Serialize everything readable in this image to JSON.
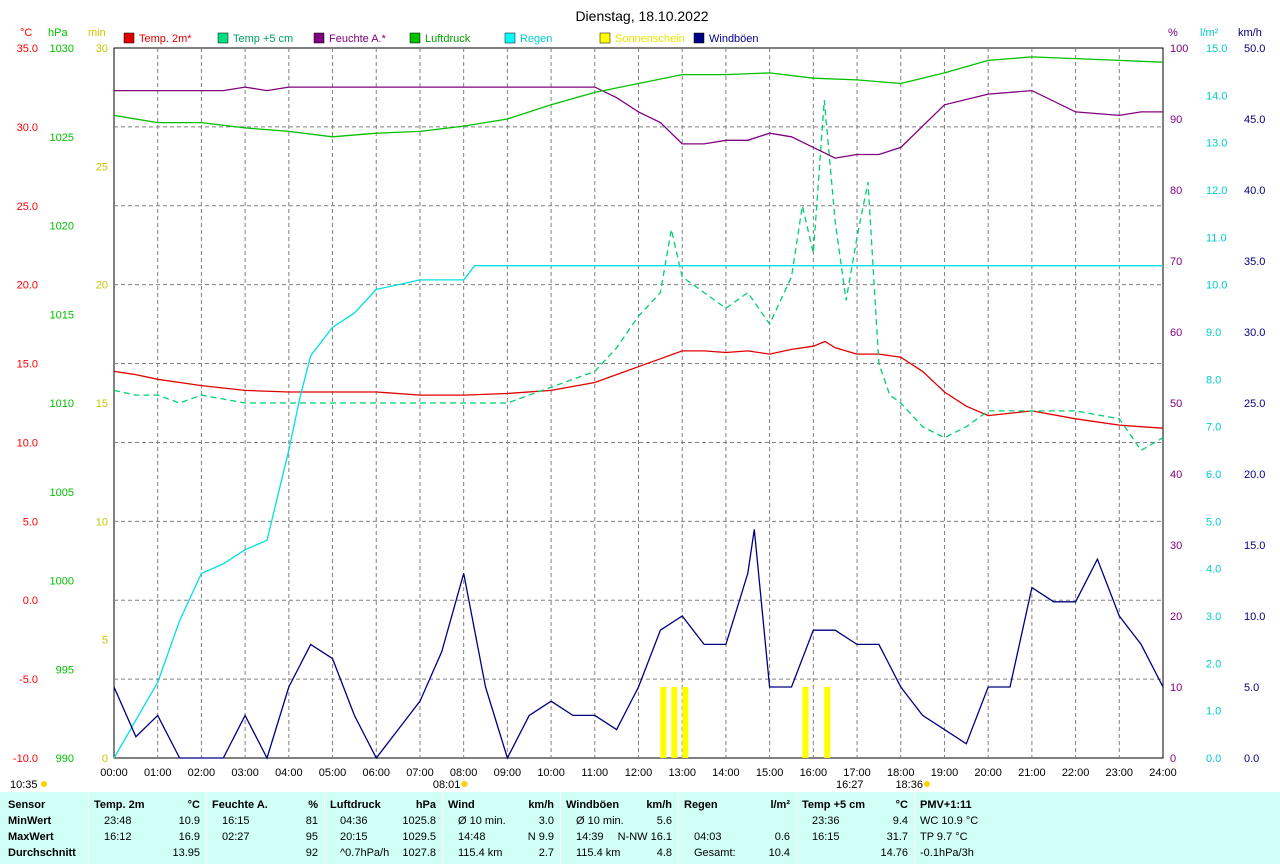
{
  "title": "Dienstag, 18.10.2022",
  "colors": {
    "temp2m": "#ff0000",
    "temp5cm": "#00e080",
    "humidity": "#800080",
    "pressure": "#00c000",
    "rain": "#00ffff",
    "sun": "#ffff00",
    "gust": "#000080"
  },
  "legend": [
    {
      "label": "Temp. 2m*",
      "color": "#e00000",
      "textcolor": "#e00000"
    },
    {
      "label": "Temp +5 cm",
      "color": "#00e080",
      "textcolor": "#00a060"
    },
    {
      "label": "Feuchte A.*",
      "color": "#800080",
      "textcolor": "#800080"
    },
    {
      "label": "Luftdruck",
      "color": "#00c000",
      "textcolor": "#00a000"
    },
    {
      "label": "Regen",
      "color": "#00ffff",
      "textcolor": "#00cccc"
    },
    {
      "label": "Sonnenschein",
      "color": "#ffff00",
      "textcolor": "#e6e600"
    },
    {
      "label": "Windböen",
      "color": "#000080",
      "textcolor": "#000080"
    }
  ],
  "axes": {
    "temp": {
      "unit": "°C",
      "ticks": [
        "35.0",
        "30.0",
        "25.0",
        "20.0",
        "15.0",
        "10.0",
        "5.0",
        "0.0",
        "-5.0",
        "-10.0"
      ],
      "color": "#ff0000"
    },
    "pressure": {
      "unit": "hPa",
      "ticks": [
        "1030",
        "1025",
        "1020",
        "1015",
        "1010",
        "1005",
        "1000",
        "995",
        "990"
      ],
      "color": "#00c000"
    },
    "minutes": {
      "unit": "min",
      "ticks": [
        "30",
        "25",
        "20",
        "15",
        "10",
        "5",
        "0"
      ],
      "color": "#c8c800"
    },
    "humidity": {
      "unit": "%",
      "ticks": [
        "100",
        "90",
        "80",
        "70",
        "60",
        "50",
        "40",
        "30",
        "20",
        "10",
        "0"
      ],
      "color": "#800080"
    },
    "rain": {
      "unit": "l/m²",
      "ticks": [
        "15.0",
        "14.0",
        "13.0",
        "12.0",
        "11.0",
        "10.0",
        "9.0",
        "8.0",
        "7.0",
        "6.0",
        "5.0",
        "4.0",
        "3.0",
        "2.0",
        "1.0",
        "0.0"
      ],
      "color": "#00cccc"
    },
    "wind": {
      "unit": "km/h",
      "ticks": [
        "50.0",
        "45.0",
        "40.0",
        "35.0",
        "30.0",
        "25.0",
        "20.0",
        "15.0",
        "10.0",
        "5.0",
        "0.0"
      ],
      "color": "#000080"
    },
    "time": {
      "ticks": [
        "00:00",
        "01:00",
        "02:00",
        "03:00",
        "04:00",
        "05:00",
        "06:00",
        "07:00",
        "08:00",
        "09:00",
        "10:00",
        "11:00",
        "12:00",
        "13:00",
        "14:00",
        "15:00",
        "16:00",
        "17:00",
        "18:00",
        "19:00",
        "20:00",
        "21:00",
        "22:00",
        "23:00",
        "24:00"
      ]
    }
  },
  "markers": {
    "sunrise": "08:01",
    "maxtemp": "16:27",
    "sunset": "18:36",
    "moonrise": "10:35"
  },
  "chart_data": {
    "type": "line",
    "title": "Dienstag, 18.10.2022",
    "x_unit": "hours",
    "series": [
      {
        "name": "Temp. 2m*",
        "unit": "°C",
        "x": [
          0,
          0.5,
          1,
          2,
          3,
          4,
          5,
          6,
          7,
          8,
          9,
          10,
          11,
          12,
          13,
          13.5,
          14,
          14.5,
          15,
          15.5,
          16,
          16.27,
          16.5,
          17,
          17.5,
          18,
          18.5,
          19,
          19.5,
          20,
          21,
          22,
          23,
          23.5,
          24
        ],
        "y": [
          14.5,
          14.3,
          14,
          13.6,
          13.3,
          13.2,
          13.2,
          13.2,
          13,
          13,
          13.1,
          13.3,
          13.8,
          14.8,
          15.8,
          15.8,
          15.7,
          15.8,
          15.6,
          15.9,
          16.1,
          16.4,
          16,
          15.6,
          15.6,
          15.4,
          14.5,
          13.2,
          12.3,
          11.7,
          12,
          11.5,
          11.1,
          11,
          10.9
        ]
      },
      {
        "name": "Temp +5 cm",
        "unit": "°C",
        "x": [
          0,
          0.5,
          1,
          1.5,
          2,
          3,
          4,
          5,
          6,
          7,
          8,
          9,
          10,
          11,
          11.5,
          12,
          12.5,
          12.75,
          13,
          13.5,
          14,
          14.5,
          15,
          15.5,
          15.75,
          16,
          16.25,
          16.5,
          16.75,
          17,
          17.25,
          17.5,
          17.75,
          18,
          18.5,
          19,
          19.5,
          20,
          20.5,
          21,
          22,
          23,
          23.5,
          24
        ],
        "y": [
          13.3,
          13,
          13,
          12.5,
          13,
          12.5,
          12.5,
          12.5,
          12.5,
          12.5,
          12.5,
          12.5,
          13.5,
          14.5,
          16,
          18,
          19.5,
          23.5,
          20.5,
          19.5,
          18.5,
          19.5,
          17.5,
          20.5,
          25,
          22,
          31.7,
          24,
          19,
          23,
          26.5,
          15,
          13,
          12.5,
          11,
          10.3,
          11,
          12,
          12,
          12,
          12,
          11.5,
          9.5,
          10.3
        ]
      },
      {
        "name": "Feuchte A.*",
        "unit": "%",
        "x": [
          0,
          2.5,
          3,
          3.5,
          4,
          5,
          6,
          7,
          8,
          9,
          10,
          11,
          11.5,
          12,
          12.5,
          13,
          13.5,
          14,
          14.5,
          15,
          15.5,
          16,
          16.5,
          17,
          17.5,
          18,
          19,
          20,
          21,
          22,
          23,
          23.5,
          24
        ],
        "y": [
          94,
          94,
          94.5,
          94,
          94.5,
          94.5,
          94.5,
          94.5,
          94.5,
          94.5,
          94.5,
          94.5,
          93,
          91,
          89.5,
          86.5,
          86.5,
          87,
          87,
          88,
          87.5,
          86,
          84.5,
          85,
          85,
          86,
          92,
          93.5,
          94,
          91,
          90.5,
          91,
          91
        ]
      },
      {
        "name": "Luftdruck",
        "unit": "hPa",
        "x": [
          0,
          1,
          2,
          3,
          4,
          5,
          6,
          7,
          8,
          9,
          10,
          11,
          12,
          13,
          14,
          15,
          16,
          17,
          18,
          19,
          20,
          21,
          22,
          23,
          24
        ],
        "y": [
          1026.2,
          1025.8,
          1025.8,
          1025.5,
          1025.3,
          1025,
          1025.2,
          1025.3,
          1025.6,
          1026,
          1026.8,
          1027.5,
          1028,
          1028.5,
          1028.5,
          1028.6,
          1028.3,
          1028.2,
          1028,
          1028.6,
          1029.3,
          1029.5,
          1029.4,
          1029.3,
          1029.2
        ]
      },
      {
        "name": "Regen",
        "unit": "l/m²",
        "x": [
          0,
          0.5,
          1,
          1.5,
          2,
          2.5,
          3,
          3.5,
          4,
          4.25,
          4.5,
          5,
          5.5,
          6,
          6.5,
          7,
          7.5,
          8,
          8.25,
          9,
          10,
          11,
          12,
          13,
          14,
          15,
          16,
          17,
          18,
          19,
          20,
          21,
          22,
          23,
          24
        ],
        "y": [
          0,
          0.8,
          1.6,
          2.9,
          3.9,
          4.1,
          4.4,
          4.6,
          6.5,
          7.6,
          8.5,
          9.1,
          9.4,
          9.9,
          10.0,
          10.1,
          10.1,
          10.1,
          10.4,
          10.4,
          10.4,
          10.4,
          10.4,
          10.4,
          10.4,
          10.4,
          10.4,
          10.4,
          10.4,
          10.4,
          10.4,
          10.4,
          10.4,
          10.4,
          10.4
        ]
      },
      {
        "name": "Sonnenschein",
        "unit": "min",
        "x": [
          12.5,
          12.75,
          13,
          15.75,
          16.25
        ],
        "y": [
          3,
          3,
          3,
          3,
          3
        ]
      },
      {
        "name": "Windböen",
        "unit": "km/h",
        "x": [
          0,
          0.5,
          1,
          1.5,
          2,
          2.5,
          3,
          3.5,
          4,
          4.5,
          5,
          5.5,
          6,
          6.5,
          7,
          7.5,
          8,
          8.5,
          9,
          9.5,
          10,
          10.5,
          11,
          11.5,
          12,
          12.5,
          13,
          13.5,
          14,
          14.5,
          14.65,
          15,
          15.5,
          16,
          16.5,
          17,
          17.5,
          18,
          18.5,
          19,
          19.5,
          20,
          20.5,
          21,
          21.5,
          22,
          22.5,
          23,
          23.5,
          24
        ],
        "y": [
          5,
          1.5,
          3,
          0,
          0,
          0,
          3,
          0,
          5,
          8,
          7,
          3,
          0,
          2,
          4,
          7.5,
          13,
          5,
          0,
          3,
          4,
          3,
          3,
          2,
          5,
          9,
          10,
          8,
          8,
          13,
          16.1,
          5,
          5,
          9,
          9,
          8,
          8,
          5,
          3,
          2,
          1,
          5,
          5,
          12,
          11,
          11,
          14,
          10,
          8,
          5
        ]
      }
    ],
    "ylim_temp": [
      -10,
      35
    ],
    "ylim_pressure": [
      990,
      1030
    ],
    "ylim_humidity": [
      0,
      100
    ],
    "ylim_rain": [
      0,
      15
    ],
    "ylim_wind": [
      0,
      50
    ],
    "ylim_minutes": [
      0,
      30
    ]
  },
  "table": {
    "sensor": {
      "head": "Sensor",
      "rows": [
        "MinWert",
        "MaxWert",
        "Durchschnitt"
      ]
    },
    "temp2m": {
      "head": "Temp. 2m",
      "unit": "°C",
      "rows": [
        [
          "23:48",
          "10.9"
        ],
        [
          "16:12",
          "16.9"
        ],
        [
          "",
          "13.95"
        ]
      ]
    },
    "humidity": {
      "head": "Feuchte A.",
      "unit": "%",
      "rows": [
        [
          "16:15",
          "81"
        ],
        [
          "02:27",
          "95"
        ],
        [
          "",
          "92"
        ]
      ]
    },
    "pressure": {
      "head": "Luftdruck",
      "unit": "hPa",
      "rows": [
        [
          "04:36",
          "1025.8"
        ],
        [
          "20:15",
          "1029.5"
        ],
        [
          "^0.7hPa/h",
          "1027.8"
        ]
      ]
    },
    "wind": {
      "head": "Wind",
      "unit": "km/h",
      "rows": [
        [
          "Ø 10 min.",
          "3.0"
        ],
        [
          "14:48",
          "N 9.9"
        ],
        [
          "115.4 km",
          "2.7"
        ]
      ]
    },
    "gust": {
      "head": "Windböen",
      "unit": "km/h",
      "rows": [
        [
          "Ø 10 min.",
          "5.6"
        ],
        [
          "14:39",
          "N-NW 16.1"
        ],
        [
          "115.4 km",
          "4.8"
        ]
      ]
    },
    "rain": {
      "head": "Regen",
      "unit": "l/m²",
      "rows": [
        [
          "",
          ""
        ],
        [
          "04:03",
          "0.6"
        ],
        [
          "Gesamt:",
          "10.4"
        ]
      ]
    },
    "temp5": {
      "head": "Temp +5 cm",
      "unit": "°C",
      "rows": [
        [
          "23:36",
          "9.4"
        ],
        [
          "16:15",
          "31.7"
        ],
        [
          "",
          "14.76"
        ]
      ]
    },
    "pmv": {
      "head": "PMV+1:11",
      "rows": [
        "WC 10.9 °C",
        "TP 9.7 °C",
        "-0.1hPa/3h"
      ]
    }
  }
}
